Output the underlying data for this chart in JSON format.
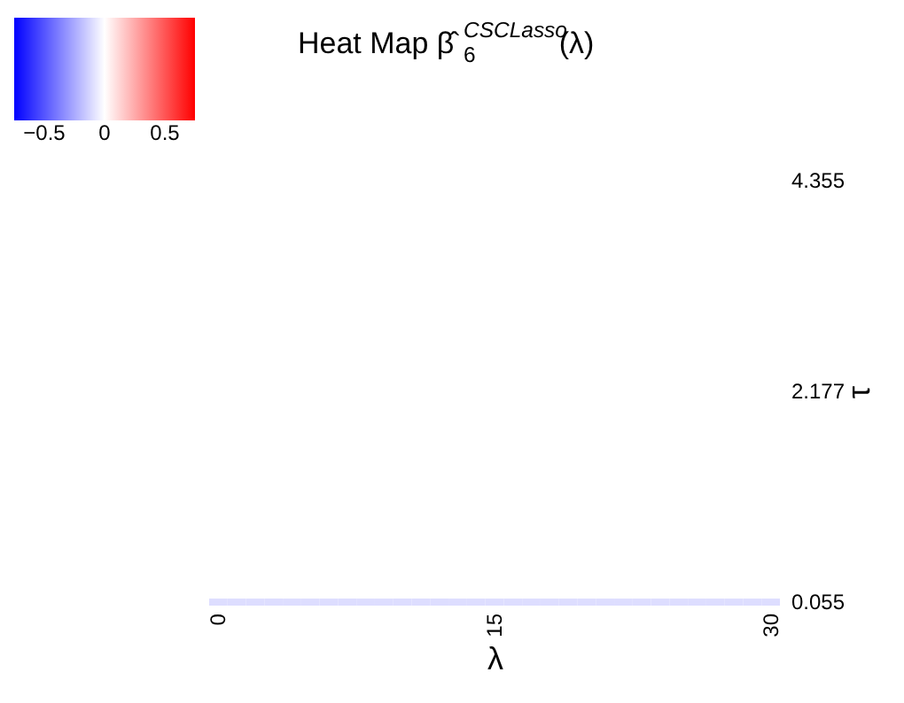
{
  "chart_data": {
    "type": "heatmap",
    "title": "Heat Map β̂$_{6}$$^{CSCLasso}$(λ)",
    "xlabel": "λ",
    "ylabel": "τ",
    "categories": [
      "0",
      null,
      null,
      null,
      null,
      null,
      null,
      null,
      null,
      null,
      null,
      null,
      null,
      null,
      null,
      "15",
      null,
      null,
      null,
      null,
      null,
      null,
      null,
      null,
      null,
      null,
      null,
      null,
      null,
      null,
      "30"
    ],
    "y_categories": [
      "4.355",
      null,
      null,
      null,
      null,
      null,
      null,
      null,
      null,
      null,
      null,
      null,
      null,
      null,
      null,
      null,
      null,
      null,
      null,
      null,
      null,
      null,
      null,
      null,
      null,
      null,
      null,
      null,
      null,
      null,
      "2.177",
      null,
      null,
      null,
      null,
      null,
      null,
      null,
      null,
      null,
      null,
      null,
      null,
      null,
      null,
      null,
      null,
      null,
      null,
      null,
      null,
      null,
      null,
      null,
      null,
      null,
      null,
      null,
      null,
      null,
      "0.055"
    ],
    "cells": [
      [
        0,
        0,
        0,
        0,
        0,
        0,
        0,
        0,
        0,
        0,
        0,
        0,
        0,
        0,
        0,
        0,
        0,
        0,
        0,
        0,
        0,
        0,
        0,
        0,
        0,
        0,
        0,
        0,
        0,
        0,
        0
      ],
      [
        0,
        0,
        0,
        0,
        0,
        0,
        0,
        0,
        0,
        0,
        0,
        0,
        0,
        0,
        0,
        0,
        0,
        0,
        0,
        0,
        0,
        0,
        0,
        0,
        0,
        0,
        0,
        0,
        0,
        0,
        0
      ],
      [
        0,
        0,
        0,
        0,
        0,
        0,
        0,
        0,
        0,
        0,
        0,
        0,
        0,
        0,
        0,
        0,
        0,
        0,
        0,
        0,
        0,
        0,
        0,
        0,
        0,
        0,
        0,
        0,
        0,
        0,
        0
      ],
      [
        0,
        0,
        0,
        0,
        0,
        0,
        0,
        0,
        0,
        0,
        0,
        0,
        0,
        0,
        0,
        0,
        0,
        0,
        0,
        0,
        0,
        0,
        0,
        0,
        0,
        0,
        0,
        0,
        0,
        0,
        0
      ],
      [
        0,
        0,
        0,
        0,
        0,
        0,
        0,
        0,
        0,
        0,
        0,
        0,
        0,
        0,
        0,
        0,
        0,
        0,
        0,
        0,
        0,
        0,
        0,
        0,
        0,
        0,
        0,
        0,
        0,
        0,
        0
      ],
      [
        0,
        0,
        0,
        0,
        0,
        0,
        0,
        0,
        0,
        0,
        0,
        0,
        0,
        0,
        0,
        0,
        0,
        0,
        0,
        0,
        0,
        0,
        0,
        0,
        0,
        0,
        0,
        0,
        0,
        0,
        0
      ],
      [
        0,
        0,
        0,
        0,
        0,
        0,
        0,
        0,
        0,
        0,
        0,
        0,
        0,
        0,
        0,
        0,
        0,
        0,
        0,
        0,
        0,
        0,
        0,
        0,
        0,
        0,
        0,
        0,
        0,
        0,
        0
      ],
      [
        0,
        0,
        0,
        0,
        0,
        0,
        0,
        0,
        0,
        0,
        0,
        0,
        0,
        0,
        0,
        0,
        0,
        0,
        0,
        0,
        0,
        0,
        0,
        0,
        0,
        0,
        0,
        0,
        0,
        0,
        0
      ],
      [
        0,
        0,
        0,
        0,
        0,
        0,
        0,
        0,
        0,
        0,
        0,
        0,
        0,
        0,
        0,
        0,
        0,
        0,
        0,
        0,
        0,
        0,
        0,
        0,
        0,
        0,
        0,
        0,
        0,
        0,
        0
      ],
      [
        0,
        0,
        0,
        0,
        0,
        0,
        0,
        0,
        0,
        0,
        0,
        0,
        0,
        0,
        0,
        0,
        0,
        0,
        0,
        0,
        0,
        0,
        0,
        0,
        0,
        0,
        0,
        0,
        0,
        0,
        0
      ],
      [
        0,
        0,
        0,
        0,
        0,
        0,
        0,
        0,
        0,
        0,
        0,
        0,
        0,
        0,
        0,
        0,
        0,
        0,
        0,
        0,
        0,
        0,
        0,
        0,
        0,
        0,
        0,
        0,
        0,
        0,
        0
      ],
      [
        0,
        0,
        0,
        0,
        0,
        0,
        0,
        0,
        0,
        0,
        0,
        0,
        0,
        0,
        0,
        0,
        0,
        0,
        0,
        0,
        0,
        0,
        0,
        0,
        0,
        0,
        0,
        0,
        0,
        0,
        0
      ],
      [
        0,
        0,
        0,
        0,
        0,
        0,
        0,
        0,
        0,
        0,
        0,
        0,
        0,
        0,
        0,
        0,
        0,
        0,
        0,
        0,
        0,
        0,
        0,
        0,
        0,
        0,
        0,
        0,
        0,
        0,
        0
      ],
      [
        0,
        0,
        0,
        0,
        0,
        0,
        0,
        0,
        0,
        0,
        0,
        0,
        0,
        0,
        0,
        0,
        0,
        0,
        0,
        0,
        0,
        0,
        0,
        0,
        0,
        0,
        0,
        0,
        0,
        0,
        0
      ],
      [
        0,
        0,
        0,
        0,
        0,
        0,
        0,
        0,
        0,
        0,
        0,
        0,
        0,
        0,
        0,
        0,
        0,
        0,
        0,
        0,
        0,
        0,
        0,
        0,
        0,
        0,
        0,
        0,
        0,
        0,
        0
      ],
      [
        0,
        0,
        0,
        0,
        0,
        0,
        0,
        0,
        0,
        0,
        0,
        0,
        0,
        0,
        0,
        0,
        0,
        0,
        0,
        0,
        0,
        0,
        0,
        0,
        0,
        0,
        0,
        0,
        0,
        0,
        0
      ],
      [
        0,
        0,
        0,
        0,
        0,
        0,
        0,
        0,
        0,
        0,
        0,
        0,
        0,
        0,
        0,
        0,
        0,
        0,
        0,
        0,
        0,
        0,
        0,
        0,
        0,
        0,
        0,
        0,
        0,
        0,
        0
      ],
      [
        0,
        0,
        0,
        0,
        0,
        0,
        0,
        0,
        0,
        0,
        0,
        0,
        0,
        0,
        0,
        0,
        0,
        0,
        0,
        0,
        0,
        0,
        0,
        0,
        0,
        0,
        0,
        0,
        0,
        0,
        0
      ],
      [
        0,
        0,
        0,
        0,
        0,
        0,
        0,
        0,
        0,
        0,
        0,
        0,
        0,
        0,
        0,
        0,
        0,
        0,
        0,
        0,
        0,
        0,
        0,
        0,
        0,
        0,
        0,
        0,
        0,
        0,
        0
      ],
      [
        0,
        0,
        0,
        0,
        0,
        0,
        0,
        0,
        0,
        0,
        0,
        0,
        0,
        0,
        0,
        0,
        0,
        0,
        0,
        0,
        0,
        0,
        0,
        0,
        0,
        0,
        0,
        0,
        0,
        0,
        0
      ],
      [
        0,
        0,
        0,
        0,
        0,
        0,
        0,
        0,
        0,
        0,
        0,
        0,
        0,
        0,
        0,
        0,
        0,
        0,
        0,
        0,
        0,
        0,
        0,
        0,
        0,
        0,
        0,
        0,
        0,
        0,
        0
      ],
      [
        0,
        0,
        0,
        0,
        0,
        0,
        0,
        0,
        0,
        0,
        0,
        0,
        0,
        0,
        0,
        0,
        0,
        0,
        0,
        0,
        0,
        0,
        0,
        0,
        0,
        0,
        0,
        0,
        0,
        0,
        0
      ],
      [
        0,
        0,
        0,
        0,
        0,
        0,
        0,
        0,
        0,
        0,
        0,
        0,
        0,
        0,
        0,
        0,
        0,
        0,
        0,
        0,
        0,
        0,
        0,
        0,
        0,
        0,
        0,
        0,
        0,
        0,
        0
      ],
      [
        0,
        0,
        0,
        0,
        0,
        0,
        0,
        0,
        0,
        0,
        0,
        0,
        0,
        0,
        0,
        0,
        0,
        0,
        0,
        0,
        0,
        0,
        0,
        0,
        0,
        0,
        0,
        0,
        0,
        0,
        0
      ],
      [
        0,
        0,
        0,
        0,
        0,
        0,
        0,
        0,
        0,
        0,
        0,
        0,
        0,
        0,
        0,
        0,
        0,
        0,
        0,
        0,
        0,
        0,
        0,
        0,
        0,
        0,
        0,
        0,
        0,
        0,
        0
      ],
      [
        0,
        0,
        0,
        0,
        0,
        0,
        0,
        0,
        0,
        0,
        0,
        0,
        0,
        0,
        0,
        0,
        0,
        0,
        0,
        0,
        0,
        0,
        0,
        0,
        0,
        0,
        0,
        0,
        0,
        0,
        0
      ],
      [
        0,
        0,
        0,
        0,
        0,
        0,
        0,
        0,
        0,
        0,
        0,
        0,
        0,
        0,
        0,
        0,
        0,
        0,
        0,
        0,
        0,
        0,
        0,
        0,
        0,
        0,
        0,
        0,
        0,
        0,
        0
      ],
      [
        0,
        0,
        0,
        0,
        0,
        0,
        0,
        0,
        0,
        0,
        0,
        0,
        0,
        0,
        0,
        0,
        0,
        0,
        0,
        0,
        0,
        0,
        0,
        0,
        0,
        0,
        0,
        0,
        0,
        0,
        0
      ],
      [
        0,
        0,
        0,
        0,
        0,
        0,
        0,
        0,
        0,
        0,
        0,
        0,
        0,
        0,
        0,
        0,
        0,
        0,
        0,
        0,
        0,
        0,
        0,
        0,
        0,
        0,
        0,
        0,
        0,
        0,
        0
      ],
      [
        0,
        0,
        0,
        0,
        0,
        0,
        0,
        0,
        0,
        0,
        0,
        0,
        0,
        0,
        0,
        0,
        0,
        0,
        0,
        0,
        0,
        0,
        0,
        0,
        0,
        0,
        0,
        0,
        0,
        0,
        0
      ],
      [
        0,
        0,
        0,
        0,
        0,
        0,
        0,
        0,
        0,
        0,
        0,
        0,
        0,
        0,
        0,
        0,
        0,
        0,
        0,
        0,
        0,
        0,
        0,
        0,
        0,
        0,
        0,
        0,
        0,
        0,
        0
      ],
      [
        0,
        0,
        0,
        0,
        0,
        0,
        0,
        0,
        0,
        0,
        0,
        0,
        0,
        0,
        0,
        0,
        0,
        0,
        0,
        0,
        0,
        0,
        0,
        0,
        0,
        0,
        0,
        0,
        0,
        0,
        0
      ],
      [
        0,
        0,
        0,
        0,
        0,
        0,
        0,
        0,
        0,
        0,
        0,
        0,
        0,
        0,
        0,
        0,
        0,
        0,
        0,
        0,
        0,
        0,
        0,
        0,
        0,
        0,
        0,
        0,
        0,
        0,
        0
      ],
      [
        0,
        0,
        0,
        0,
        0,
        0,
        0,
        0,
        0,
        0,
        0,
        0,
        0,
        0,
        0,
        0,
        0,
        0,
        0,
        0,
        0,
        0,
        0,
        0,
        0,
        0,
        0,
        0,
        0,
        0,
        0
      ],
      [
        0,
        0,
        0,
        0,
        0,
        0,
        0,
        0,
        0,
        0,
        0,
        0,
        0,
        0,
        0,
        0,
        0,
        0,
        0,
        0,
        0,
        0,
        0,
        0,
        0,
        0,
        0,
        0,
        0,
        0,
        0
      ],
      [
        0,
        0,
        0,
        0,
        0,
        0,
        0,
        0,
        0,
        0,
        0,
        0,
        0,
        0,
        0,
        0,
        0,
        0,
        0,
        0,
        0,
        0,
        0,
        0,
        0,
        0,
        0,
        0,
        0,
        0,
        0
      ],
      [
        0,
        0,
        0,
        0,
        0,
        0,
        0,
        0,
        0,
        0,
        0,
        0,
        0,
        0,
        0,
        0,
        0,
        0,
        0,
        0,
        0,
        0,
        0,
        0,
        0,
        0,
        0,
        0,
        0,
        0,
        0
      ],
      [
        0,
        0,
        0,
        0,
        0,
        0,
        0,
        0,
        0,
        0,
        0,
        0,
        0,
        0,
        0,
        0,
        0,
        0,
        0,
        0,
        0,
        0,
        0,
        0,
        0,
        0,
        0,
        0,
        0,
        0,
        0
      ],
      [
        0,
        0,
        0,
        0,
        0,
        0,
        0,
        0,
        0,
        0,
        0,
        0,
        0,
        0,
        0,
        0,
        0,
        0,
        0,
        0,
        0,
        0,
        0,
        0,
        0,
        0,
        0,
        0,
        0,
        0,
        0
      ],
      [
        0,
        0,
        0,
        0,
        0,
        0,
        0,
        0,
        0,
        0,
        0,
        0,
        0,
        0,
        0,
        0,
        0,
        0,
        0,
        0,
        0,
        0,
        0,
        0,
        0,
        0,
        0,
        0,
        0,
        0,
        0
      ],
      [
        0,
        0,
        0,
        0,
        0,
        0,
        0,
        0,
        0,
        0,
        0,
        0,
        0,
        0,
        0,
        0,
        0,
        0,
        0,
        0,
        0,
        0,
        0,
        0,
        0,
        0,
        0,
        0,
        0,
        0,
        0
      ],
      [
        0,
        0,
        0,
        0,
        0,
        0,
        0,
        0,
        0,
        0,
        0,
        0,
        0,
        0,
        0,
        0,
        0,
        0,
        0,
        0,
        0,
        0,
        0,
        0,
        0,
        0,
        0,
        0,
        0,
        0,
        0
      ],
      [
        0,
        0,
        0,
        0,
        0,
        0,
        0,
        0,
        0,
        0,
        0,
        0,
        0,
        0,
        0,
        0,
        0,
        0,
        0,
        0,
        0,
        0,
        0,
        0,
        0,
        0,
        0,
        0,
        0,
        0,
        0
      ],
      [
        0,
        0,
        0,
        0,
        0,
        0,
        0,
        0,
        0,
        0,
        0,
        0,
        0,
        0,
        0,
        0,
        0,
        0,
        0,
        0,
        0,
        0,
        0,
        0,
        0,
        0,
        0,
        0,
        0,
        0,
        0
      ],
      [
        0,
        0,
        0,
        0,
        0,
        0,
        0,
        0,
        0,
        0,
        0,
        0,
        0,
        0,
        0,
        0,
        0,
        0,
        0,
        0,
        0,
        0,
        0,
        0,
        0,
        0,
        0,
        0,
        0,
        0,
        0
      ],
      [
        0,
        0,
        0,
        0,
        0,
        0,
        0,
        0,
        0,
        0,
        0,
        0,
        0,
        0,
        0,
        0,
        0,
        0,
        0,
        0,
        0,
        0,
        0,
        0,
        0,
        0,
        0,
        0,
        0,
        0,
        0
      ],
      [
        0,
        0,
        0,
        0,
        0,
        0,
        0,
        0,
        0,
        0,
        0,
        0,
        0,
        0,
        0,
        0,
        0,
        0,
        0,
        0,
        0,
        0,
        0,
        0,
        0,
        0,
        0,
        0,
        0,
        0,
        0
      ],
      [
        0,
        0,
        0,
        0,
        0,
        0,
        0,
        0,
        0,
        0,
        0,
        0,
        0,
        0,
        0,
        0,
        0,
        0,
        0,
        0,
        0,
        0,
        0,
        0,
        0,
        0,
        0,
        0,
        0,
        0,
        0
      ],
      [
        0,
        0,
        0,
        0,
        0,
        0,
        0,
        0,
        0,
        0,
        0,
        0,
        0,
        0,
        0,
        0,
        0,
        0,
        0,
        0,
        0,
        0,
        0,
        0,
        0,
        0,
        0,
        0,
        0,
        0,
        0
      ],
      [
        0,
        0,
        0,
        0,
        0,
        0,
        0,
        0,
        0,
        0,
        0,
        0,
        0,
        0,
        0,
        0,
        0,
        0,
        0,
        0,
        0,
        0,
        0,
        0,
        0,
        0,
        0,
        0,
        0,
        0,
        0
      ],
      [
        0,
        0,
        0,
        0,
        0,
        0,
        0,
        0,
        0,
        0,
        0,
        0,
        0,
        0,
        0,
        0,
        0,
        0,
        0,
        0,
        0,
        0,
        0,
        0,
        0,
        0,
        0,
        0,
        0,
        0,
        0
      ],
      [
        0,
        0,
        0,
        0,
        0,
        0,
        0,
        0,
        0,
        0,
        0,
        0,
        0,
        0,
        0,
        0,
        0,
        0,
        0,
        0,
        0,
        0,
        0,
        0,
        0,
        0,
        0,
        0,
        0,
        0,
        0
      ],
      [
        0,
        0,
        0,
        0,
        0,
        0,
        0,
        0,
        0,
        0,
        0,
        0,
        0,
        0,
        0,
        0,
        0,
        0,
        0,
        0,
        0,
        0,
        0,
        0,
        0,
        0,
        0,
        0,
        0,
        0,
        0
      ],
      [
        0,
        0,
        0,
        0,
        0,
        0,
        0,
        0,
        0,
        0,
        0,
        0,
        0,
        0,
        0,
        0,
        0,
        0,
        0,
        0,
        0,
        0,
        0,
        0,
        0,
        0,
        0,
        0,
        0,
        0,
        0
      ],
      [
        0,
        0,
        0,
        0,
        0,
        0,
        0,
        0,
        0,
        0,
        0,
        0,
        0,
        0,
        0,
        0,
        0,
        0,
        0,
        0,
        0,
        0,
        0,
        0,
        0,
        0,
        0,
        0,
        0,
        0,
        0
      ],
      [
        0,
        0,
        0,
        0,
        0,
        0,
        0,
        0,
        0,
        0,
        0,
        0,
        0,
        0,
        0,
        0,
        0,
        0,
        0,
        0,
        0,
        0,
        0,
        0,
        0,
        0,
        0,
        0,
        0,
        0,
        0
      ],
      [
        0,
        0,
        0,
        0,
        0,
        0,
        0,
        0,
        0,
        0,
        0,
        0,
        0,
        0,
        0,
        0,
        0,
        0,
        0,
        0,
        0,
        0,
        0,
        0,
        0,
        0,
        0,
        0,
        0,
        0,
        0
      ],
      [
        0,
        0,
        0,
        0,
        0,
        0,
        0,
        0,
        0,
        0,
        0,
        0,
        0,
        0,
        0,
        0,
        0,
        0,
        0,
        0,
        0,
        0,
        0,
        0,
        0,
        0,
        0,
        0,
        0,
        0,
        0
      ],
      [
        0,
        0,
        0,
        0,
        0,
        0,
        0,
        0,
        0,
        0,
        0,
        0,
        0,
        0,
        0,
        0,
        0,
        0,
        0,
        0,
        0,
        0,
        0,
        0,
        0,
        0,
        0,
        0,
        0,
        0,
        0
      ],
      [
        0,
        0,
        0,
        0,
        0,
        0,
        0,
        0,
        0,
        0,
        0,
        0,
        0,
        0,
        0,
        0,
        0,
        0,
        0,
        0,
        0,
        0,
        0,
        0,
        0,
        0,
        0,
        0,
        0,
        0,
        0
      ],
      [
        -0.1,
        -0.1,
        -0.1,
        -0.1,
        -0.1,
        -0.1,
        -0.1,
        -0.1,
        -0.1,
        -0.1,
        -0.1,
        -0.1,
        -0.1,
        -0.1,
        -0.1,
        -0.1,
        -0.1,
        -0.1,
        -0.1,
        -0.1,
        -0.1,
        -0.1,
        -0.1,
        -0.1,
        -0.1,
        -0.1,
        -0.1,
        -0.1,
        -0.1,
        -0.1,
        -0.1
      ]
    ],
    "clim": [
      -0.75,
      0.75
    ],
    "cticks": [
      -0.5,
      0,
      0.5
    ]
  }
}
